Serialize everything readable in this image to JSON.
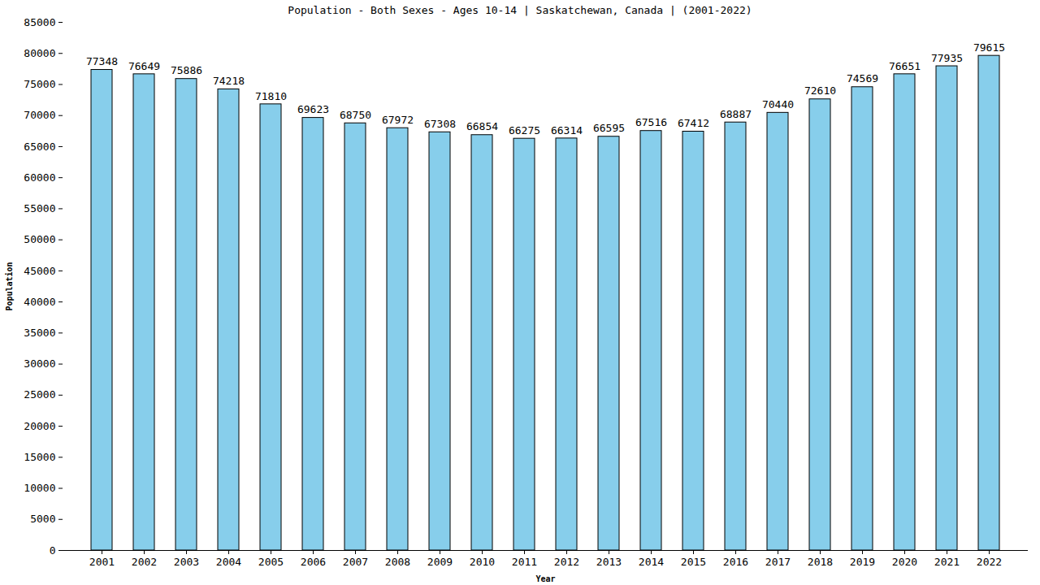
{
  "chart_data": {
    "type": "bar",
    "title": "Population - Both Sexes - Ages 10-14 | Saskatchewan, Canada |  (2001-2022)",
    "x_label": "Year",
    "y_label": "Population",
    "categories": [
      "2001",
      "2002",
      "2003",
      "2004",
      "2005",
      "2006",
      "2007",
      "2008",
      "2009",
      "2010",
      "2011",
      "2012",
      "2013",
      "2014",
      "2015",
      "2016",
      "2017",
      "2018",
      "2019",
      "2020",
      "2021",
      "2022"
    ],
    "values": [
      77348,
      76649,
      75886,
      74218,
      71810,
      69623,
      68750,
      67972,
      67308,
      66854,
      66275,
      66314,
      66595,
      67516,
      67412,
      68887,
      70440,
      72610,
      74569,
      76651,
      77935,
      79615
    ],
    "color": "#87ceeb",
    "ylim": [
      0,
      85000
    ],
    "yticks": [
      0,
      5000,
      10000,
      15000,
      20000,
      25000,
      30000,
      35000,
      40000,
      45000,
      50000,
      55000,
      60000,
      65000,
      70000,
      75000,
      80000,
      85000
    ],
    "grid": false,
    "data_labels": true
  }
}
